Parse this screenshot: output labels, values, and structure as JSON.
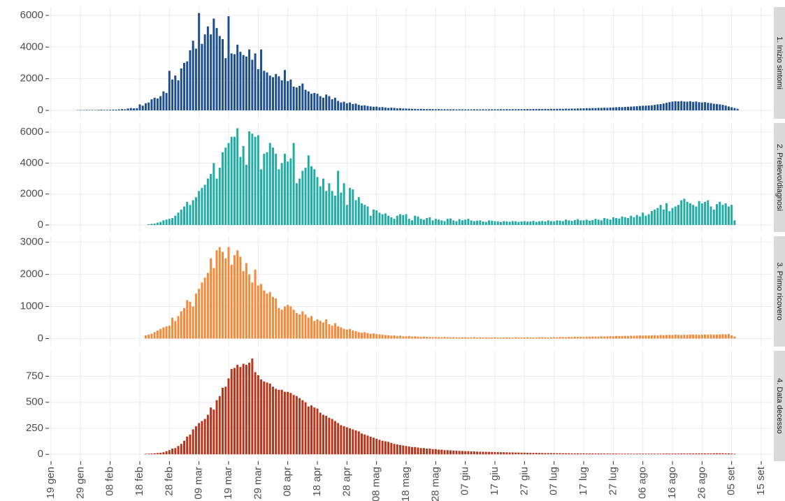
{
  "chart_data": {
    "type": "bar",
    "categories": [
      "19 gen",
      null,
      null,
      null,
      null,
      null,
      null,
      null,
      null,
      null,
      "29 gen",
      null,
      null,
      null,
      null,
      null,
      null,
      null,
      null,
      null,
      "08 feb",
      null,
      null,
      null,
      null,
      null,
      null,
      null,
      null,
      null,
      "18 feb",
      null,
      null,
      null,
      null,
      null,
      null,
      null,
      null,
      null,
      "28 feb",
      null,
      null,
      null,
      null,
      null,
      null,
      null,
      null,
      null,
      "09 mar",
      null,
      null,
      null,
      null,
      null,
      null,
      null,
      null,
      null,
      "19 mar",
      null,
      null,
      null,
      null,
      null,
      null,
      null,
      null,
      null,
      "29 mar",
      null,
      null,
      null,
      null,
      null,
      null,
      null,
      null,
      null,
      "08 apr",
      null,
      null,
      null,
      null,
      null,
      null,
      null,
      null,
      null,
      "18 apr",
      null,
      null,
      null,
      null,
      null,
      null,
      null,
      null,
      null,
      "28 apr",
      null,
      null,
      null,
      null,
      null,
      null,
      null,
      null,
      null,
      "08 mag",
      null,
      null,
      null,
      null,
      null,
      null,
      null,
      null,
      null,
      "18 mag",
      null,
      null,
      null,
      null,
      null,
      null,
      null,
      null,
      null,
      "28 mag",
      null,
      null,
      null,
      null,
      null,
      null,
      null,
      null,
      null,
      "07 giu",
      null,
      null,
      null,
      null,
      null,
      null,
      null,
      null,
      null,
      "17 giu",
      null,
      null,
      null,
      null,
      null,
      null,
      null,
      null,
      null,
      "27 giu",
      null,
      null,
      null,
      null,
      null,
      null,
      null,
      null,
      null,
      "07 lug",
      null,
      null,
      null,
      null,
      null,
      null,
      null,
      null,
      null,
      "17 lug",
      null,
      null,
      null,
      null,
      null,
      null,
      null,
      null,
      null,
      "27 lug",
      null,
      null,
      null,
      null,
      null,
      null,
      null,
      null,
      null,
      "06 ago",
      null,
      null,
      null,
      null,
      null,
      null,
      null,
      null,
      null,
      "16 ago",
      null,
      null,
      null,
      null,
      null,
      null,
      null,
      null,
      null,
      "26 ago",
      null,
      null,
      null,
      null,
      null,
      null,
      null,
      null,
      null,
      "05 set",
      null,
      null,
      null,
      null,
      null,
      null,
      null,
      null,
      null,
      "15 set"
    ],
    "grid": true,
    "series": [
      {
        "name": "1. Inizio sintomi",
        "color": "#1d4f8f",
        "ylim": [
          -530,
          6530
        ],
        "yticks": [
          0,
          2000,
          4000,
          6000
        ],
        "values": [
          null,
          null,
          null,
          null,
          null,
          null,
          null,
          null,
          null,
          20,
          25,
          20,
          30,
          25,
          30,
          20,
          35,
          40,
          30,
          35,
          40,
          50,
          45,
          60,
          80,
          70,
          120,
          150,
          130,
          140,
          380,
          300,
          450,
          500,
          700,
          800,
          750,
          900,
          1200,
          1100,
          2500,
          1950,
          2200,
          1900,
          2650,
          3000,
          3100,
          3800,
          4400,
          3900,
          6150,
          4200,
          4800,
          5300,
          4800,
          5800,
          5200,
          4700,
          4500,
          3300,
          5950,
          3600,
          3550,
          4150,
          3700,
          3500,
          3400,
          3850,
          3200,
          3600,
          2600,
          3850,
          2500,
          2400,
          2200,
          2100,
          2300,
          2150,
          1900,
          2550,
          1850,
          1950,
          1500,
          1450,
          1550,
          1700,
          1300,
          1200,
          1050,
          1100,
          1050,
          900,
          800,
          1000,
          900,
          700,
          800,
          600,
          500,
          550,
          450,
          500,
          400,
          430,
          350,
          300,
          320,
          280,
          250,
          230,
          240,
          200,
          210,
          180,
          150,
          170,
          160,
          130,
          140,
          120,
          120,
          110,
          100,
          95,
          90,
          100,
          85,
          80,
          90,
          80,
          75,
          80,
          70,
          75,
          70,
          65,
          70,
          60,
          70,
          65,
          60,
          65,
          60,
          70,
          60,
          65,
          70,
          60,
          65,
          70,
          70,
          65,
          75,
          70,
          80,
          70,
          75,
          70,
          80,
          75,
          80,
          85,
          80,
          90,
          85,
          90,
          85,
          95,
          90,
          100,
          95,
          100,
          105,
          100,
          110,
          105,
          115,
          110,
          120,
          125,
          130,
          140,
          135,
          150,
          145,
          160,
          155,
          170,
          165,
          180,
          190,
          200,
          210,
          205,
          220,
          230,
          240,
          250,
          260,
          280,
          290,
          300,
          310,
          320,
          350,
          380,
          400,
          430,
          480,
          520,
          560,
          580,
          570,
          590,
          560,
          550,
          580,
          540,
          560,
          520,
          500,
          520,
          480,
          460,
          420,
          400,
          380,
          350,
          300,
          250,
          200,
          150,
          100,
          null,
          null,
          null,
          null,
          null,
          null,
          null,
          null
        ]
      },
      {
        "name": "2. Prelievo/diagnosi",
        "color": "#21aca5",
        "ylim": [
          -450,
          6590
        ],
        "yticks": [
          0,
          2000,
          4000,
          6000
        ],
        "values": [
          null,
          null,
          null,
          null,
          null,
          null,
          null,
          null,
          null,
          null,
          null,
          null,
          null,
          null,
          null,
          null,
          null,
          null,
          null,
          null,
          null,
          null,
          null,
          null,
          null,
          null,
          null,
          null,
          null,
          null,
          null,
          null,
          null,
          50,
          80,
          100,
          150,
          200,
          300,
          350,
          400,
          450,
          600,
          800,
          1000,
          1200,
          1500,
          1300,
          1600,
          1800,
          2200,
          2400,
          2600,
          3000,
          3300,
          4000,
          3000,
          3700,
          4700,
          5000,
          5300,
          5700,
          5700,
          6250,
          4400,
          5100,
          3900,
          6050,
          5900,
          5700,
          5800,
          3600,
          4600,
          4700,
          5300,
          5000,
          4600,
          3600,
          4000,
          4600,
          4100,
          4300,
          5300,
          2700,
          3000,
          3500,
          3700,
          4500,
          3800,
          3600,
          3100,
          2500,
          3000,
          2200,
          2700,
          2200,
          1900,
          3500,
          2100,
          2700,
          1300,
          2400,
          2300,
          1600,
          1800,
          1400,
          1300,
          1200,
          600,
          1000,
          950,
          800,
          700,
          750,
          600,
          500,
          400,
          600,
          700,
          650,
          700,
          400,
          300,
          600,
          550,
          400,
          350,
          450,
          500,
          300,
          400,
          350,
          300,
          250,
          400,
          420,
          300,
          250,
          380,
          300,
          350,
          400,
          300,
          250,
          280,
          300,
          230,
          200,
          300,
          280,
          250,
          230,
          200,
          250,
          230,
          210,
          250,
          240,
          200,
          230,
          250,
          220,
          230,
          270,
          200,
          240,
          260,
          230,
          300,
          250,
          240,
          300,
          280,
          250,
          350,
          300,
          260,
          320,
          380,
          300,
          300,
          350,
          280,
          320,
          400,
          350,
          300,
          450,
          400,
          350,
          500,
          450,
          420,
          550,
          500,
          450,
          600,
          500,
          650,
          550,
          800,
          600,
          700,
          900,
          1000,
          1100,
          1300,
          1000,
          1400,
          900,
          1100,
          1200,
          1300,
          1600,
          1700,
          1500,
          1400,
          1300,
          1200,
          1550,
          1400,
          1500,
          1600,
          1200,
          1000,
          1350,
          1500,
          1300,
          1400,
          1200,
          1300,
          300,
          null,
          null,
          null,
          null,
          null,
          null,
          null,
          null,
          null
        ]
      },
      {
        "name": "3. Primo ricovero",
        "color": "#f58a3b",
        "ylim": [
          -250,
          3190
        ],
        "yticks": [
          0,
          1000,
          2000,
          3000
        ],
        "values": [
          null,
          null,
          null,
          null,
          null,
          null,
          null,
          null,
          null,
          null,
          null,
          null,
          null,
          null,
          null,
          null,
          null,
          null,
          null,
          null,
          null,
          null,
          null,
          null,
          null,
          null,
          null,
          null,
          null,
          null,
          null,
          null,
          100,
          120,
          150,
          200,
          250,
          300,
          350,
          380,
          400,
          650,
          550,
          700,
          850,
          950,
          1200,
          1150,
          1000,
          1400,
          1550,
          1750,
          1900,
          2050,
          2500,
          2200,
          2750,
          2850,
          2700,
          2500,
          2850,
          2300,
          2600,
          2750,
          2550,
          2100,
          2350,
          2000,
          1750,
          2150,
          1650,
          1700,
          1500,
          1400,
          1450,
          1300,
          1250,
          950,
          900,
          1000,
          1050,
          1000,
          900,
          800,
          750,
          850,
          750,
          650,
          700,
          550,
          600,
          550,
          500,
          600,
          450,
          400,
          480,
          380,
          350,
          300,
          280,
          300,
          250,
          230,
          200,
          180,
          200,
          170,
          150,
          160,
          140,
          130,
          120,
          110,
          100,
          90,
          100,
          80,
          90,
          70,
          70,
          80,
          60,
          70,
          60,
          50,
          60,
          55,
          50,
          45,
          50,
          45,
          40,
          50,
          45,
          40,
          45,
          40,
          35,
          40,
          40,
          35,
          40,
          45,
          35,
          40,
          35,
          40,
          30,
          35,
          40,
          35,
          30,
          35,
          40,
          35,
          30,
          40,
          35,
          30,
          35,
          40,
          35,
          30,
          35,
          40,
          45,
          40,
          35,
          40,
          45,
          40,
          50,
          45,
          40,
          50,
          45,
          55,
          50,
          55,
          50,
          60,
          55,
          60,
          65,
          60,
          70,
          65,
          70,
          75,
          70,
          80,
          75,
          80,
          85,
          80,
          90,
          85,
          90,
          95,
          90,
          100,
          95,
          100,
          105,
          100,
          110,
          105,
          110,
          115,
          110,
          120,
          115,
          110,
          120,
          115,
          120,
          125,
          120,
          115,
          120,
          125,
          120,
          130,
          125,
          120,
          130,
          135,
          130,
          140,
          100,
          60,
          null,
          null,
          null,
          null,
          null,
          null,
          null,
          null,
          null
        ]
      },
      {
        "name": "4. Data decesso",
        "color": "#b7351b",
        "ylim": [
          -66,
          995
        ],
        "yticks": [
          0,
          250,
          500,
          750
        ],
        "values": [
          null,
          null,
          null,
          null,
          null,
          null,
          null,
          null,
          null,
          null,
          null,
          null,
          null,
          null,
          null,
          null,
          null,
          null,
          null,
          null,
          null,
          null,
          null,
          null,
          null,
          null,
          null,
          null,
          null,
          null,
          null,
          null,
          5,
          6,
          8,
          10,
          12,
          15,
          20,
          30,
          40,
          55,
          60,
          80,
          100,
          130,
          170,
          190,
          240,
          270,
          300,
          320,
          340,
          380,
          450,
          430,
          520,
          560,
          640,
          650,
          730,
          820,
          830,
          860,
          840,
          870,
          860,
          880,
          920,
          790,
          760,
          720,
          700,
          690,
          680,
          650,
          630,
          620,
          620,
          600,
          600,
          590,
          570,
          560,
          540,
          520,
          500,
          460,
          470,
          450,
          440,
          400,
          380,
          370,
          350,
          340,
          320,
          300,
          280,
          270,
          260,
          250,
          240,
          230,
          220,
          200,
          190,
          180,
          170,
          160,
          150,
          140,
          130,
          125,
          120,
          110,
          100,
          95,
          90,
          85,
          80,
          75,
          70,
          70,
          65,
          60,
          60,
          55,
          55,
          50,
          50,
          45,
          45,
          40,
          40,
          38,
          36,
          35,
          33,
          32,
          30,
          30,
          28,
          28,
          26,
          25,
          25,
          24,
          23,
          22,
          22,
          21,
          20,
          20,
          19,
          18,
          18,
          17,
          17,
          16,
          16,
          15,
          15,
          14,
          14,
          13,
          13,
          12,
          12,
          12,
          11,
          11,
          11,
          10,
          10,
          10,
          9,
          9,
          9,
          9,
          9,
          8,
          8,
          8,
          8,
          8,
          7,
          7,
          7,
          7,
          7,
          7,
          6,
          6,
          6,
          6,
          6,
          6,
          6,
          6,
          6,
          6,
          6,
          6,
          6,
          6,
          6,
          7,
          7,
          7,
          7,
          7,
          7,
          8,
          8,
          8,
          8,
          8,
          9,
          9,
          9,
          9,
          9,
          9,
          10,
          10,
          10,
          10,
          9,
          9,
          8,
          5,
          null,
          null,
          null,
          null,
          null,
          null,
          null,
          null,
          null
        ]
      }
    ]
  }
}
